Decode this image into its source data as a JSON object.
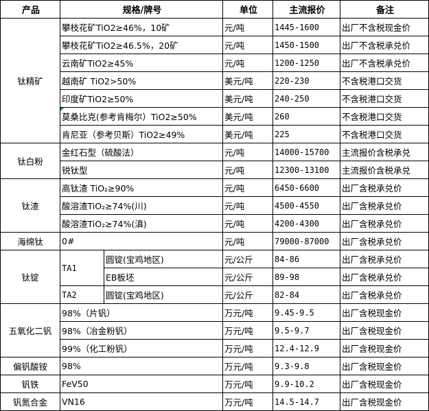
{
  "headers": {
    "product": "产品",
    "spec": "规格/牌号",
    "unit": "单位",
    "price": "主流报价",
    "note": "备注"
  },
  "groups": {
    "g0": {
      "product": "钛精矿",
      "rows": [
        {
          "spec": "攀枝花矿TiO2≥46%，10矿",
          "unit": "元/吨",
          "price": "1445-1600",
          "note": "出厂不含税现金价"
        },
        {
          "spec": "攀枝花矿TiO2≥46.5%，20矿",
          "unit": "元/吨",
          "price": "1450-1500",
          "note": "出厂不含税承兑价"
        },
        {
          "spec": "云南矿TiO2≥45%",
          "unit": "元/吨",
          "price": "1200-1250",
          "note": "出厂不含税承兑价"
        },
        {
          "spec": "越南矿 TiO2>50%",
          "unit": "美元/吨",
          "price": "220-230",
          "note": "不含税港口交货"
        },
        {
          "spec": "印度矿TiO2≥50%",
          "unit": "美元/吨",
          "price": "240-250",
          "note": "不含税港口交货"
        },
        {
          "spec": "莫桑比克(参考肯梅尔）TiO2≥50%",
          "unit": "美元/吨",
          "price": "260",
          "note": "不含税港口交货"
        },
        {
          "spec": "肯尼亚（参考贝斯）TiO2≥49%",
          "unit": "美元/吨",
          "price": "225",
          "note": "不含税港口交货"
        }
      ]
    },
    "g1": {
      "product": "钛白粉",
      "rows": [
        {
          "spec": "金红石型（硫酸法）",
          "unit": "元/吨",
          "price": "14000-15700",
          "note": "主流报价含税承兑"
        },
        {
          "spec": "锐钛型",
          "unit": "元/吨",
          "price": "12300-13100",
          "note": "主流报价含税承兑"
        }
      ]
    },
    "g2": {
      "product": "钛渣",
      "rows": [
        {
          "spec": "高钛渣 TiO₂≥90%",
          "unit": "元/吨",
          "price": "6450-6600",
          "note": "出厂含税承兑价"
        },
        {
          "spec": "酸溶渣TiO₂≥74%(川)",
          "unit": "元/吨",
          "price": "4500-4550",
          "note": "出厂含税承兑价"
        },
        {
          "spec": "酸溶渣TiO₂≥74%(滇)",
          "unit": "元/吨",
          "price": "4200-4300",
          "note": "出厂含税承兑价"
        }
      ]
    },
    "g3": {
      "product": "海绵钛",
      "rows": [
        {
          "spec": "0#",
          "unit": "元/吨",
          "price": "79000-87000",
          "note": "出厂含税承兑价"
        }
      ]
    },
    "g4": {
      "product": "钛锭",
      "rows": [
        {
          "grade": "TA1",
          "spec": "圆锭(宝鸡地区)",
          "unit": "元/公斤",
          "price": "84-86",
          "note": "出厂含税承兑价"
        },
        {
          "spec": "EB板坯",
          "unit": "元/公斤",
          "price": "89-98",
          "note": "出厂含税承兑价"
        },
        {
          "grade": "TA2",
          "spec": "圆锭(宝鸡地区)",
          "unit": "元/公斤",
          "price": "82-84",
          "note": "出厂含税承兑价"
        }
      ]
    },
    "g5": {
      "product": "五氧化二钒",
      "rows": [
        {
          "spec": "98%（片钒）",
          "unit": "万元/吨",
          "price": "9.45-9.5",
          "note": "出厂含税现金价"
        },
        {
          "spec": "98%（冶金粉钒）",
          "unit": "万元/吨",
          "price": "9.5-9.7",
          "note": "出厂含税现金价"
        },
        {
          "spec": "99%（化工粉钒）",
          "unit": "万元/吨",
          "price": "12.4-12.9",
          "note": "出厂含税现金价"
        }
      ]
    },
    "g6": {
      "product": "偏钒酸铵",
      "rows": [
        {
          "spec": "98%",
          "unit": "万元/吨",
          "price": "9.3-9.8",
          "note": "出厂含税现金价"
        }
      ]
    },
    "g7": {
      "product": "钒铁",
      "rows": [
        {
          "spec": "FeV50",
          "unit": "万元/吨",
          "price": "9.9-10.2",
          "note": "出厂含税现金价"
        }
      ]
    },
    "g8": {
      "product": "钒氮合金",
      "rows": [
        {
          "spec": "VN16",
          "unit": "万元/吨",
          "price": "14.5-14.7",
          "note": "出厂含税现金价"
        }
      ]
    }
  },
  "colors": {
    "border": "#000000",
    "comment_marker": "#1a8a1a"
  }
}
